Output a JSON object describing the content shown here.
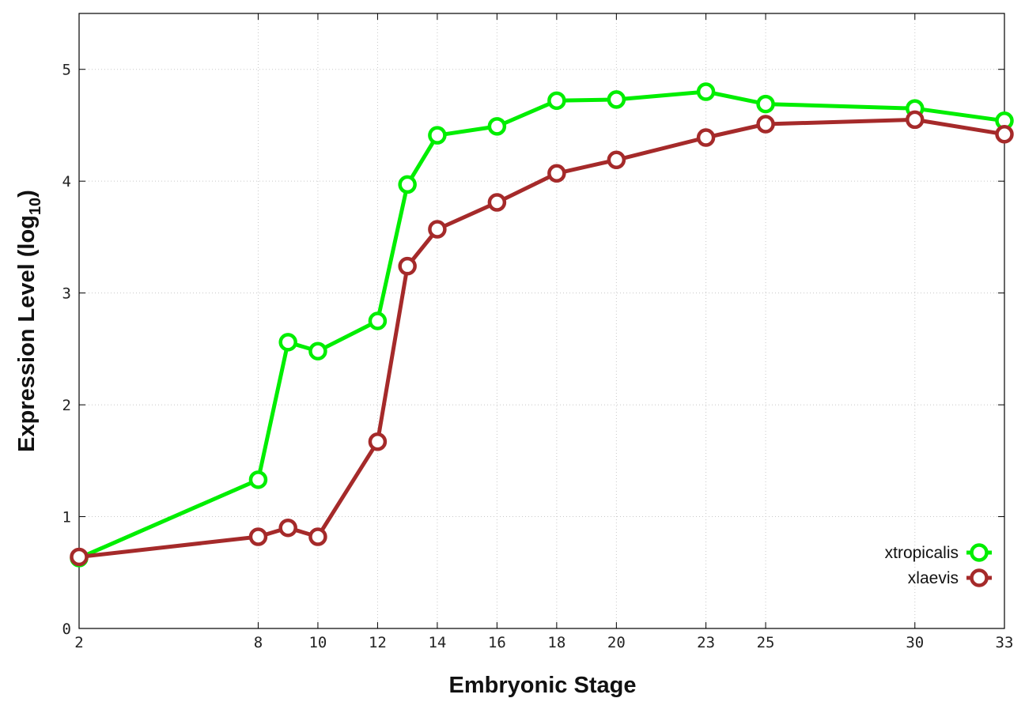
{
  "chart_data": {
    "type": "line",
    "title": "",
    "xlabel": "Embryonic Stage",
    "ylabel": "Expression Level (log",
    "ylabel_sub": "10",
    "ylabel_close": ")",
    "x": [
      2,
      8,
      9,
      10,
      12,
      13,
      14,
      16,
      18,
      20,
      23,
      25,
      30,
      33
    ],
    "x_ticks": [
      2,
      8,
      10,
      12,
      14,
      16,
      18,
      20,
      23,
      25,
      30,
      33
    ],
    "x_tick_labels": [
      "2",
      "8",
      "10",
      "12",
      "14",
      "16",
      "18",
      "20",
      "23",
      "25",
      "30",
      "33"
    ],
    "y_ticks": [
      0,
      1,
      2,
      3,
      4,
      5
    ],
    "y_tick_labels": [
      "0",
      "1",
      "2",
      "3",
      "4",
      "5"
    ],
    "xlim": [
      2,
      33
    ],
    "ylim": [
      0,
      5.5
    ],
    "grid": true,
    "legend_position": "bottom-right",
    "series": [
      {
        "name": "xtropicalis",
        "color": "#00ee00",
        "values": [
          0.63,
          1.33,
          2.56,
          2.48,
          2.75,
          3.97,
          4.41,
          4.49,
          4.72,
          4.73,
          4.8,
          4.69,
          4.65,
          4.54
        ]
      },
      {
        "name": "xlaevis",
        "color": "#a52a2a",
        "values": [
          0.64,
          0.82,
          0.9,
          0.82,
          1.67,
          3.24,
          3.57,
          3.81,
          4.07,
          4.19,
          4.39,
          4.51,
          4.55,
          4.42
        ]
      }
    ]
  }
}
